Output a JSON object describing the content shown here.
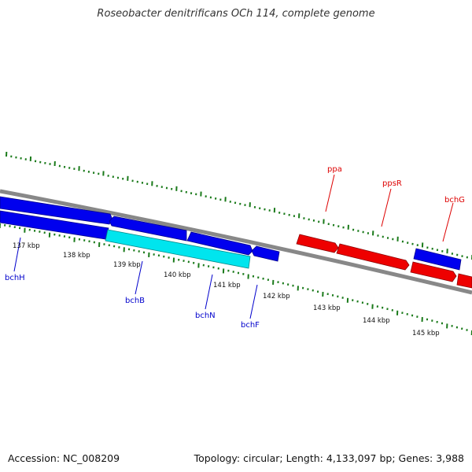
{
  "title": "Roseobacter denitrificans OCh 114, complete genome",
  "footer": {
    "accession": "Accession: NC_008209",
    "summary": "Topology: circular; Length: 4,133,097 bp; Genes: 3,988"
  },
  "ticks": [
    "137 kbp",
    "138 kbp",
    "139 kbp",
    "140 kbp",
    "141 kbp",
    "142 kbp",
    "143 kbp",
    "144 kbp",
    "145 kbp"
  ],
  "gene_labels": [
    {
      "name": "bchH",
      "color": "#0000cc"
    },
    {
      "name": "bchB",
      "color": "#0000cc"
    },
    {
      "name": "bchN",
      "color": "#0000cc"
    },
    {
      "name": "bchF",
      "color": "#0000cc"
    },
    {
      "name": "ppa",
      "color": "#dd0000"
    },
    {
      "name": "ppsR",
      "color": "#dd0000"
    },
    {
      "name": "bchG",
      "color": "#dd0000"
    }
  ],
  "colors": {
    "backbone": "#888888",
    "forward_gene": "#0000ee",
    "reverse_gene": "#ee0000",
    "highlight_gene": "#00e5ee",
    "tick": "#1a7a1a"
  }
}
